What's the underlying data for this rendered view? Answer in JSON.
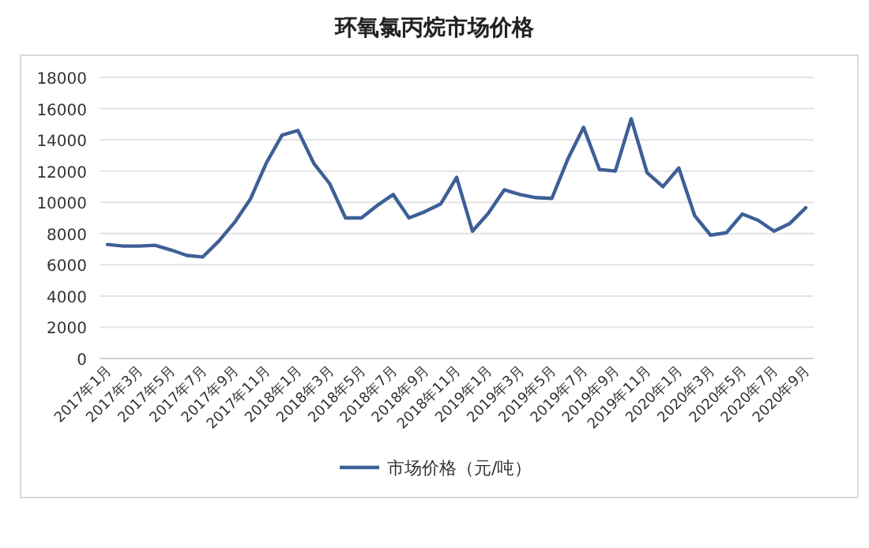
{
  "chart_data": {
    "type": "line",
    "title": "环氧氯丙烷市场价格",
    "categories": [
      "2017年1月",
      null,
      "2017年3月",
      null,
      "2017年5月",
      null,
      "2017年7月",
      null,
      "2017年9月",
      null,
      "2017年11月",
      null,
      "2018年1月",
      null,
      "2018年3月",
      null,
      "2018年5月",
      null,
      "2018年7月",
      null,
      "2018年9月",
      null,
      "2018年11月",
      null,
      "2019年1月",
      null,
      "2019年3月",
      null,
      "2019年5月",
      null,
      "2019年7月",
      null,
      "2019年9月",
      null,
      "2019年11月",
      null,
      "2020年1月",
      null,
      "2020年3月",
      null,
      "2020年5月",
      null,
      "2020年7月",
      null,
      "2020年9月"
    ],
    "series": [
      {
        "name": "市场价格（元/吨）",
        "color": "#3e5f96",
        "values": [
          7300,
          7200,
          7200,
          7250,
          6950,
          6600,
          6500,
          7500,
          8700,
          10200,
          12500,
          14300,
          14600,
          12500,
          11200,
          9000,
          9000,
          9800,
          10500,
          9000,
          9400,
          9900,
          11600,
          8150,
          9300,
          10800,
          10500,
          10300,
          10250,
          12750,
          14800,
          12100,
          12000,
          15350,
          11900,
          11000,
          12200,
          9150,
          7900,
          8050,
          9250,
          8850,
          8150,
          8650,
          9650
        ]
      }
    ],
    "ylim": [
      0,
      18000
    ],
    "yticks": [
      0,
      2000,
      4000,
      6000,
      8000,
      10000,
      12000,
      14000,
      16000,
      18000
    ],
    "grid": "y",
    "legend": "bottom",
    "marker": "none",
    "line_style": "solid"
  }
}
